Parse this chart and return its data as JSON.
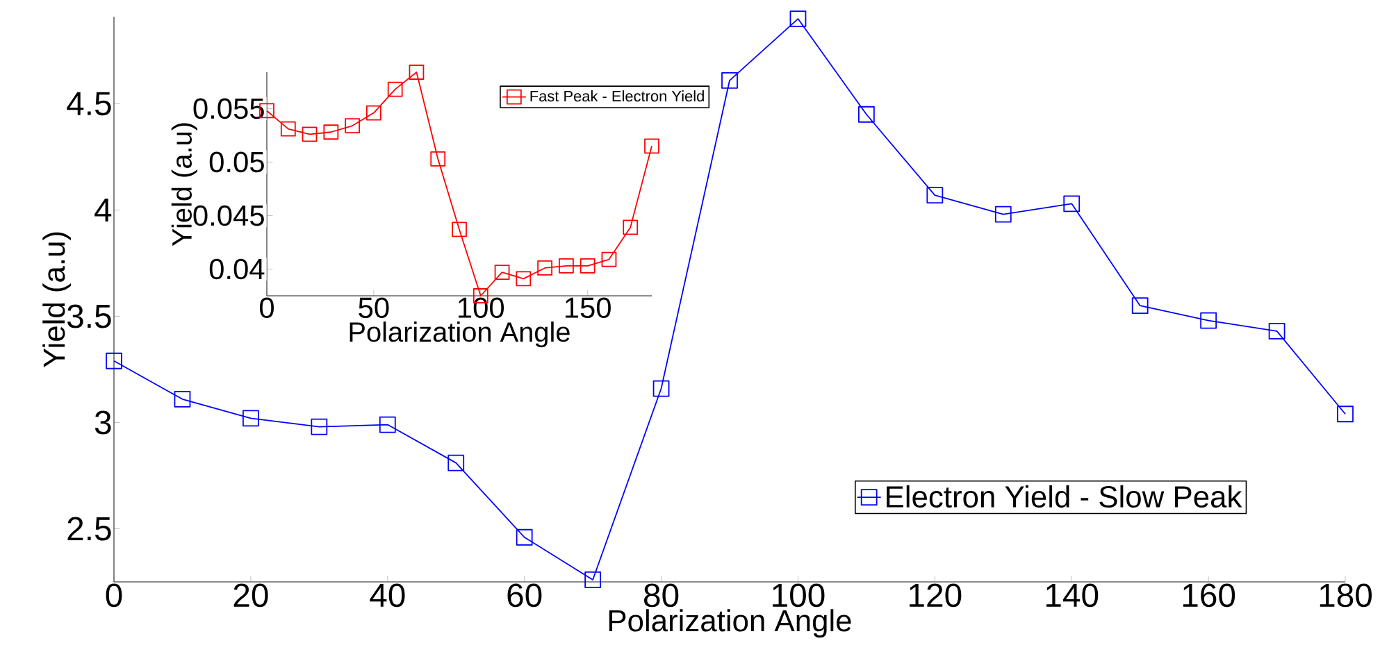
{
  "chart_data": [
    {
      "type": "line",
      "xlabel": "Polarization Angle",
      "ylabel": "Yield (a.u)",
      "x": [
        0,
        10,
        20,
        30,
        40,
        50,
        60,
        70,
        80,
        90,
        100,
        110,
        120,
        130,
        140,
        150,
        160,
        170,
        180
      ],
      "xlim": [
        0,
        180
      ],
      "ylim": [
        2.25,
        4.91
      ],
      "xticks": [
        0,
        20,
        40,
        60,
        80,
        100,
        120,
        140,
        160,
        180
      ],
      "yticks": [
        2.5,
        3,
        3.5,
        4,
        4.5
      ],
      "marker": "square",
      "legend": "bottom right",
      "series": [
        {
          "name": "Electron Yield - Slow Peak",
          "color": "#0000ff",
          "values": [
            3.29,
            3.11,
            3.02,
            2.98,
            2.99,
            2.81,
            2.46,
            2.26,
            3.16,
            4.61,
            4.9,
            4.45,
            4.07,
            3.98,
            4.03,
            3.55,
            3.48,
            3.43,
            3.04
          ]
        }
      ]
    },
    {
      "type": "line",
      "xlabel": "Polarization Angle",
      "ylabel": "Yield (a.u)",
      "x": [
        0,
        10,
        20,
        30,
        40,
        50,
        60,
        70,
        80,
        90,
        100,
        110,
        120,
        130,
        140,
        150,
        160,
        170,
        180
      ],
      "xlim": [
        0,
        180
      ],
      "ylim": [
        0.0375,
        0.0584
      ],
      "xticks": [
        0,
        50,
        100,
        150
      ],
      "yticks": [
        0.04,
        0.045,
        0.05,
        0.055
      ],
      "marker": "square",
      "legend": "top right",
      "series": [
        {
          "name": "Fast Peak - Electron Yield",
          "color": "#ff0000",
          "values": [
            0.0548,
            0.0531,
            0.0526,
            0.0528,
            0.0534,
            0.0546,
            0.0568,
            0.0584,
            0.0503,
            0.0437,
            0.0375,
            0.0397,
            0.0391,
            0.0401,
            0.0403,
            0.0403,
            0.0409,
            0.0439,
            0.0515
          ]
        }
      ]
    }
  ]
}
